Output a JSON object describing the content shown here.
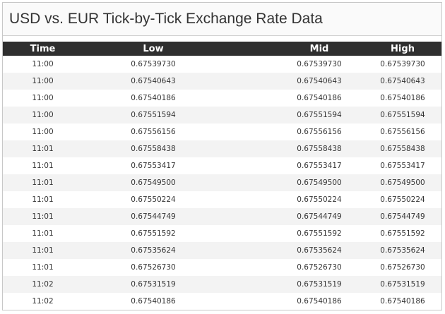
{
  "title": "USD vs. EUR Tick-by-Tick Exchange Rate Data",
  "columns": {
    "time": "Time",
    "low": "Low",
    "mid": "Mid",
    "high": "High"
  },
  "rows": [
    {
      "time": "11:00",
      "low": "0.67539730",
      "mid": "0.67539730",
      "high": "0.67539730"
    },
    {
      "time": "11:00",
      "low": "0.67540643",
      "mid": "0.67540643",
      "high": "0.67540643"
    },
    {
      "time": "11:00",
      "low": "0.67540186",
      "mid": "0.67540186",
      "high": "0.67540186"
    },
    {
      "time": "11:00",
      "low": "0.67551594",
      "mid": "0.67551594",
      "high": "0.67551594"
    },
    {
      "time": "11:00",
      "low": "0.67556156",
      "mid": "0.67556156",
      "high": "0.67556156"
    },
    {
      "time": "11:01",
      "low": "0.67558438",
      "mid": "0.67558438",
      "high": "0.67558438"
    },
    {
      "time": "11:01",
      "low": "0.67553417",
      "mid": "0.67553417",
      "high": "0.67553417"
    },
    {
      "time": "11:01",
      "low": "0.67549500",
      "mid": "0.67549500",
      "high": "0.67549500"
    },
    {
      "time": "11:01",
      "low": "0.67550224",
      "mid": "0.67550224",
      "high": "0.67550224"
    },
    {
      "time": "11:01",
      "low": "0.67544749",
      "mid": "0.67544749",
      "high": "0.67544749"
    },
    {
      "time": "11:01",
      "low": "0.67551592",
      "mid": "0.67551592",
      "high": "0.67551592"
    },
    {
      "time": "11:01",
      "low": "0.67535624",
      "mid": "0.67535624",
      "high": "0.67535624"
    },
    {
      "time": "11:01",
      "low": "0.67526730",
      "mid": "0.67526730",
      "high": "0.67526730"
    },
    {
      "time": "11:02",
      "low": "0.67531519",
      "mid": "0.67531519",
      "high": "0.67531519"
    },
    {
      "time": "11:02",
      "low": "0.67540186",
      "mid": "0.67540186",
      "high": "0.67540186"
    }
  ]
}
